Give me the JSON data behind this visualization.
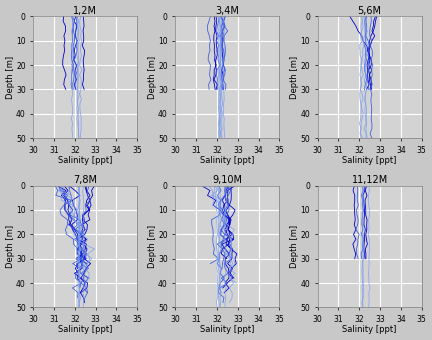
{
  "titles": [
    "1,2M",
    "3,4M",
    "5,6M",
    "7,8M",
    "9,10M",
    "11,12M"
  ],
  "xlabel": "Salinity [ppt]",
  "ylabel": "Depth [m]",
  "xlim": [
    30,
    35
  ],
  "ylim": [
    50,
    0
  ],
  "xticks": [
    30,
    31,
    32,
    33,
    34,
    35
  ],
  "yticks": [
    0,
    10,
    20,
    30,
    40,
    50
  ],
  "figsize": [
    4.32,
    3.4
  ],
  "dpi": 100,
  "background_color": "#d3d3d3",
  "grid_color": "#ffffff",
  "line_colors": [
    "#0000aa",
    "#2222cc",
    "#4444dd",
    "#6688ee",
    "#8899ee",
    "#aabbff"
  ],
  "title_fontsize": 7,
  "axis_fontsize": 6,
  "tick_fontsize": 5.5
}
